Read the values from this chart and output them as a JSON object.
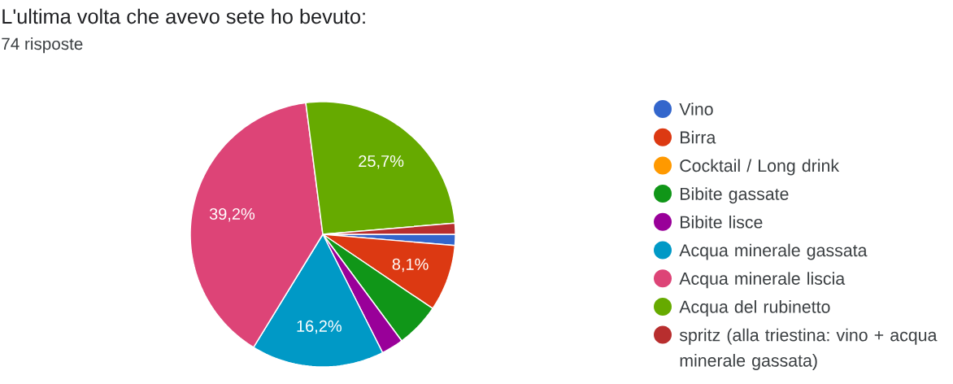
{
  "chart_data": {
    "type": "pie",
    "title": "L'ultima volta che avevo sete ho bevuto:",
    "subtitle": "74 risposte",
    "categories": [
      "Vino",
      "Birra",
      "Cocktail / Long drink",
      "Bibite gassate",
      "Bibite lisce",
      "Acqua minerale gassata",
      "Acqua minerale liscia",
      "Acqua del rubinetto",
      "spritz (alla triestina: vino + acqua minerale gassata)"
    ],
    "values": [
      1.35,
      8.1,
      0,
      5.4,
      2.7,
      16.2,
      39.2,
      25.7,
      1.35
    ],
    "colors": [
      "#3366cc",
      "#dc3912",
      "#ff9900",
      "#109618",
      "#990099",
      "#0099c6",
      "#dd4477",
      "#66aa00",
      "#b82e2e"
    ],
    "value_labels": [
      null,
      "8,1%",
      null,
      null,
      null,
      "16,2%",
      "39,2%",
      "25,7%",
      null
    ],
    "legend": "right"
  }
}
